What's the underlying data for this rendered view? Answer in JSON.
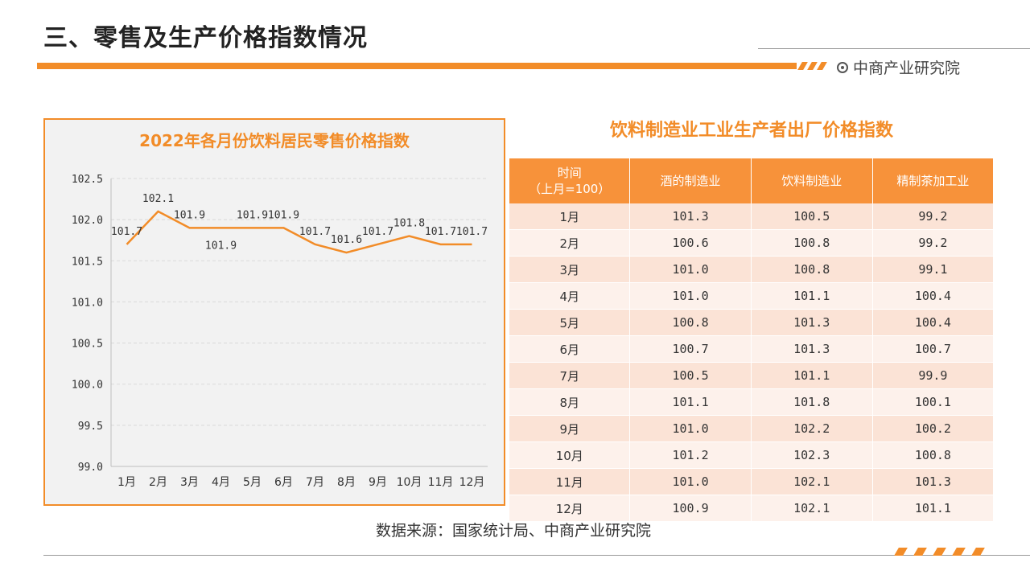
{
  "header": {
    "title": "三、零售及生产价格指数情况",
    "brand": "中商产业研究院"
  },
  "colors": {
    "accent": "#F28C28",
    "header_bg": "#F7923A",
    "row_odd": "#FBE3D6",
    "row_even": "#FDF1EB"
  },
  "chart_data": {
    "type": "line",
    "title": "2022年各月份饮料居民零售价格指数",
    "categories": [
      "1月",
      "2月",
      "3月",
      "4月",
      "5月",
      "6月",
      "7月",
      "8月",
      "9月",
      "10月",
      "11月",
      "12月"
    ],
    "series": [
      {
        "values": [
          101.7,
          102.1,
          101.9,
          101.9,
          101.9,
          101.9,
          101.7,
          101.6,
          101.7,
          101.8,
          101.7,
          101.7
        ]
      }
    ],
    "data_labels": [
      "101.7",
      "102.1",
      "101.9",
      "101.9",
      "101.9",
      "101.9",
      "101.7",
      "101.6",
      "101.7",
      "101.8",
      "101.7",
      "101.7"
    ],
    "ylim": [
      99.0,
      102.5
    ],
    "yticks": [
      "99.0",
      "99.5",
      "100.0",
      "100.5",
      "101.0",
      "101.5",
      "102.0",
      "102.5"
    ],
    "grid": true,
    "xlabel": "",
    "ylabel": ""
  },
  "table": {
    "title": "饮料制造业工业生产者出厂价格指数",
    "headers": [
      [
        "时间",
        "（上月=100）"
      ],
      [
        "酒的制造业"
      ],
      [
        "饮料制造业"
      ],
      [
        "精制茶加工业"
      ]
    ],
    "rows": [
      [
        "1月",
        "101.3",
        "100.5",
        "99.2"
      ],
      [
        "2月",
        "100.6",
        "100.8",
        "99.2"
      ],
      [
        "3月",
        "101.0",
        "100.8",
        "99.1"
      ],
      [
        "4月",
        "101.0",
        "101.1",
        "100.4"
      ],
      [
        "5月",
        "100.8",
        "101.3",
        "100.4"
      ],
      [
        "6月",
        "100.7",
        "101.3",
        "100.7"
      ],
      [
        "7月",
        "100.5",
        "101.1",
        "99.9"
      ],
      [
        "8月",
        "101.1",
        "101.8",
        "100.1"
      ],
      [
        "9月",
        "101.0",
        "102.2",
        "100.2"
      ],
      [
        "10月",
        "101.2",
        "102.3",
        "100.8"
      ],
      [
        "11月",
        "101.0",
        "102.1",
        "101.3"
      ],
      [
        "12月",
        "100.9",
        "102.1",
        "101.1"
      ]
    ]
  },
  "footer": {
    "source": "数据来源：国家统计局、中商产业研究院"
  }
}
